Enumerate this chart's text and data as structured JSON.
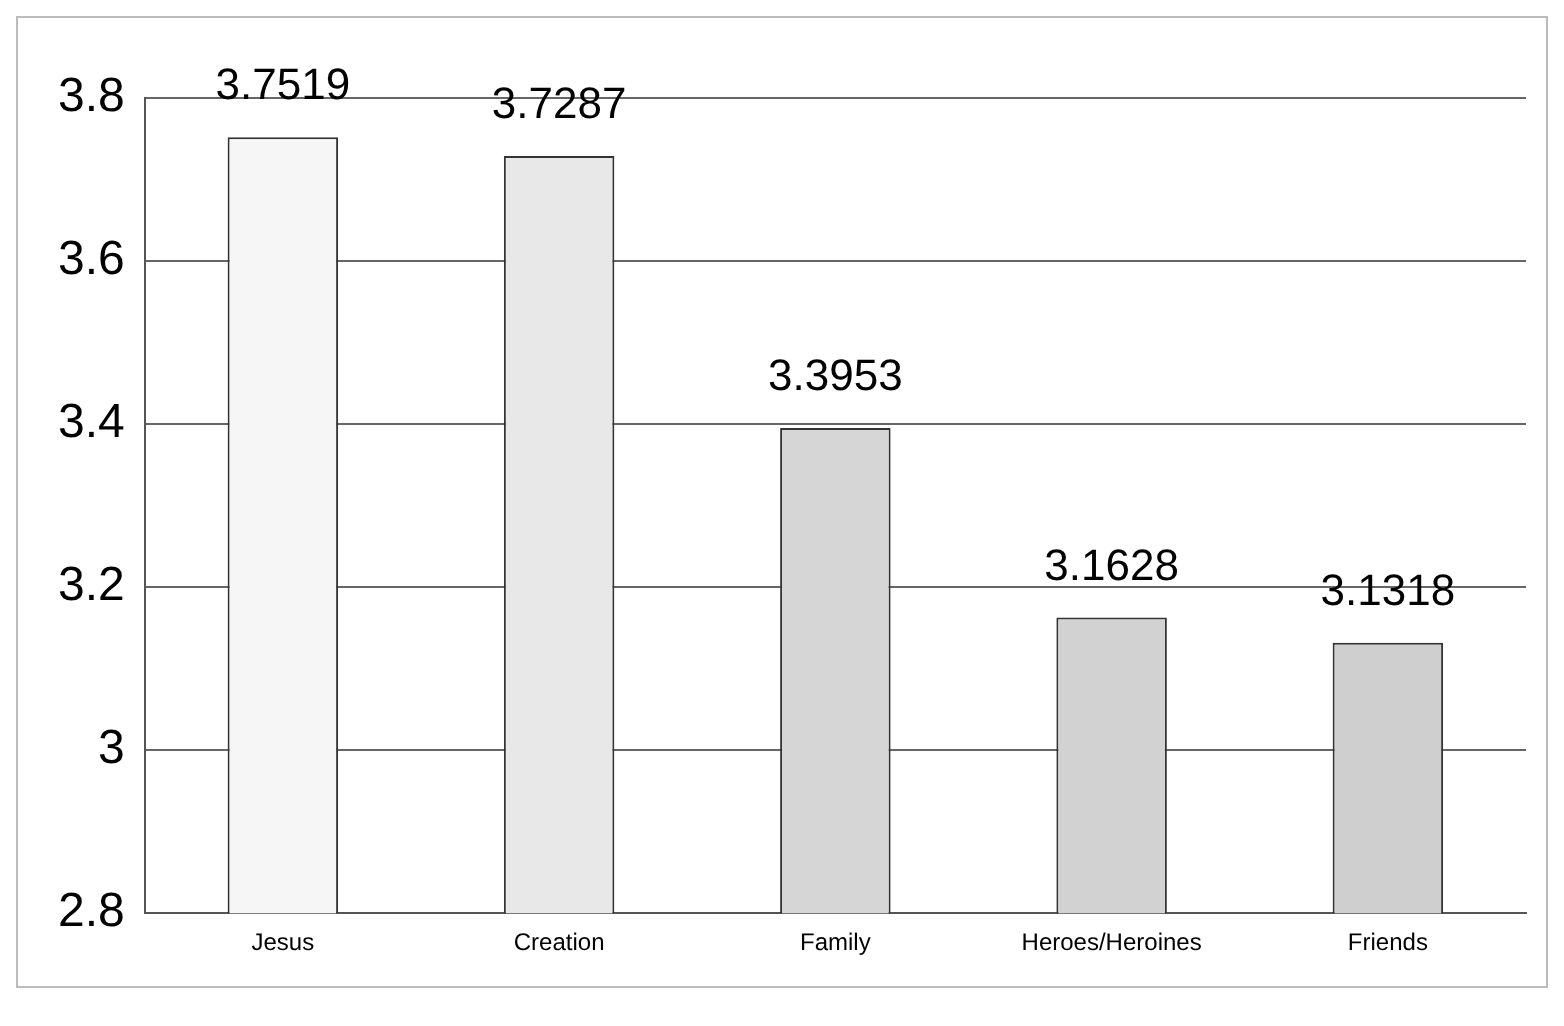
{
  "chart_data": {
    "type": "bar",
    "categories": [
      "Jesus",
      "Creation",
      "Family",
      "Heroes/Heroines",
      "Friends"
    ],
    "values": [
      3.7519,
      3.7287,
      3.3953,
      3.1628,
      3.1318
    ],
    "colors": [
      "#f6f6f6",
      "#e8e8e8",
      "#d6d6d6",
      "#d2d2d2",
      "#cfcfcf"
    ],
    "ylim": [
      2.8,
      3.8
    ],
    "yticks": [
      2.8,
      3,
      3.2,
      3.4,
      3.6,
      3.8
    ],
    "grid": "y",
    "data_labels": true,
    "legend": false
  }
}
